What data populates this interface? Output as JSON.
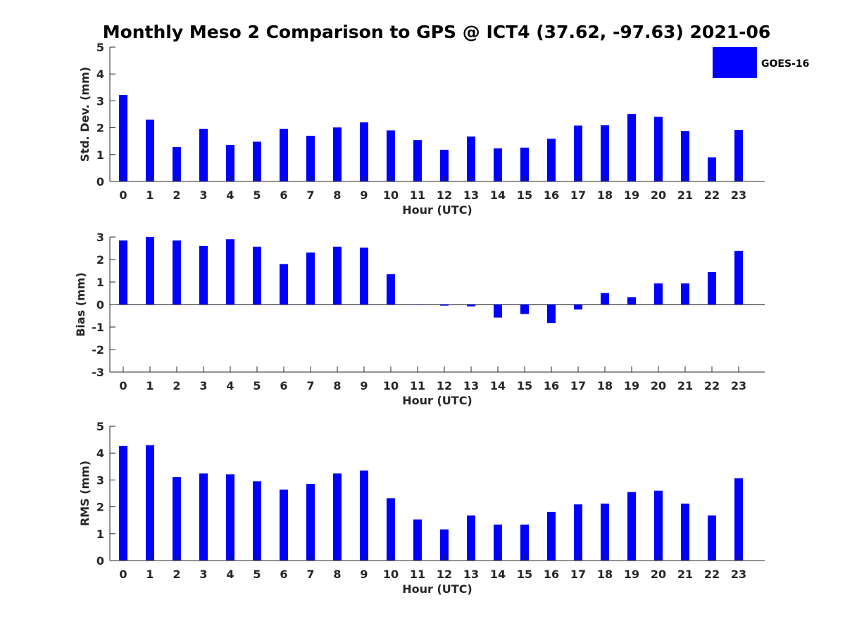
{
  "figure": {
    "title": "Monthly Meso 2 Comparison to GPS @ ICT4 (37.62, -97.63) 2021-06"
  },
  "legend": {
    "label": "GOES-16",
    "color": "#0000ff",
    "placement": "top-right"
  },
  "chart_data": [
    {
      "type": "bar",
      "title": "Monthly Meso 2 Comparison to GPS @ ICT4 (37.62, -97.63) 2021-06",
      "xlabel": "Hour (UTC)",
      "ylabel": "Std. Dev. (mm)",
      "ylim": [
        0,
        5
      ],
      "yticks": [
        0,
        1,
        2,
        3,
        4,
        5
      ],
      "grid": false,
      "color": "#0000ff",
      "categories": [
        "0",
        "1",
        "2",
        "3",
        "4",
        "5",
        "6",
        "7",
        "8",
        "9",
        "10",
        "11",
        "12",
        "13",
        "14",
        "15",
        "16",
        "17",
        "18",
        "19",
        "20",
        "21",
        "22",
        "23"
      ],
      "series": [
        {
          "name": "GOES-16",
          "values": [
            3.22,
            2.3,
            1.28,
            1.96,
            1.36,
            1.48,
            1.96,
            1.7,
            2.01,
            2.2,
            1.9,
            1.54,
            1.18,
            1.67,
            1.23,
            1.26,
            1.59,
            2.08,
            2.09,
            2.51,
            2.41,
            1.88,
            0.9,
            1.91
          ]
        }
      ]
    },
    {
      "type": "bar",
      "title": "",
      "xlabel": "Hour (UTC)",
      "ylabel": "Bias (mm)",
      "ylim": [
        -3,
        3
      ],
      "yticks": [
        -3,
        -2,
        -1,
        0,
        1,
        2,
        3
      ],
      "grid": false,
      "zero_line": true,
      "color": "#0000ff",
      "categories": [
        "0",
        "1",
        "2",
        "3",
        "4",
        "5",
        "6",
        "7",
        "8",
        "9",
        "10",
        "11",
        "12",
        "13",
        "14",
        "15",
        "16",
        "17",
        "18",
        "19",
        "20",
        "21",
        "22",
        "23"
      ],
      "series": [
        {
          "name": "GOES-16",
          "values": [
            2.85,
            3.0,
            2.85,
            2.6,
            2.9,
            2.57,
            1.8,
            2.31,
            2.57,
            2.53,
            1.35,
            -0.01,
            -0.05,
            -0.08,
            -0.58,
            -0.42,
            -0.82,
            -0.22,
            0.51,
            0.33,
            0.94,
            0.94,
            1.44,
            2.38
          ]
        }
      ]
    },
    {
      "type": "bar",
      "title": "",
      "xlabel": "Hour (UTC)",
      "ylabel": "RMS (mm)",
      "ylim": [
        0,
        5
      ],
      "yticks": [
        0,
        1,
        2,
        3,
        4,
        5
      ],
      "grid": false,
      "color": "#0000ff",
      "categories": [
        "0",
        "1",
        "2",
        "3",
        "4",
        "5",
        "6",
        "7",
        "8",
        "9",
        "10",
        "11",
        "12",
        "13",
        "14",
        "15",
        "16",
        "17",
        "18",
        "19",
        "20",
        "21",
        "22",
        "23"
      ],
      "series": [
        {
          "name": "GOES-16",
          "values": [
            4.27,
            4.29,
            3.11,
            3.24,
            3.21,
            2.95,
            2.64,
            2.85,
            3.24,
            3.35,
            2.32,
            1.53,
            1.16,
            1.68,
            1.34,
            1.34,
            1.81,
            2.09,
            2.12,
            2.55,
            2.6,
            2.12,
            1.68,
            3.06
          ]
        }
      ]
    }
  ]
}
